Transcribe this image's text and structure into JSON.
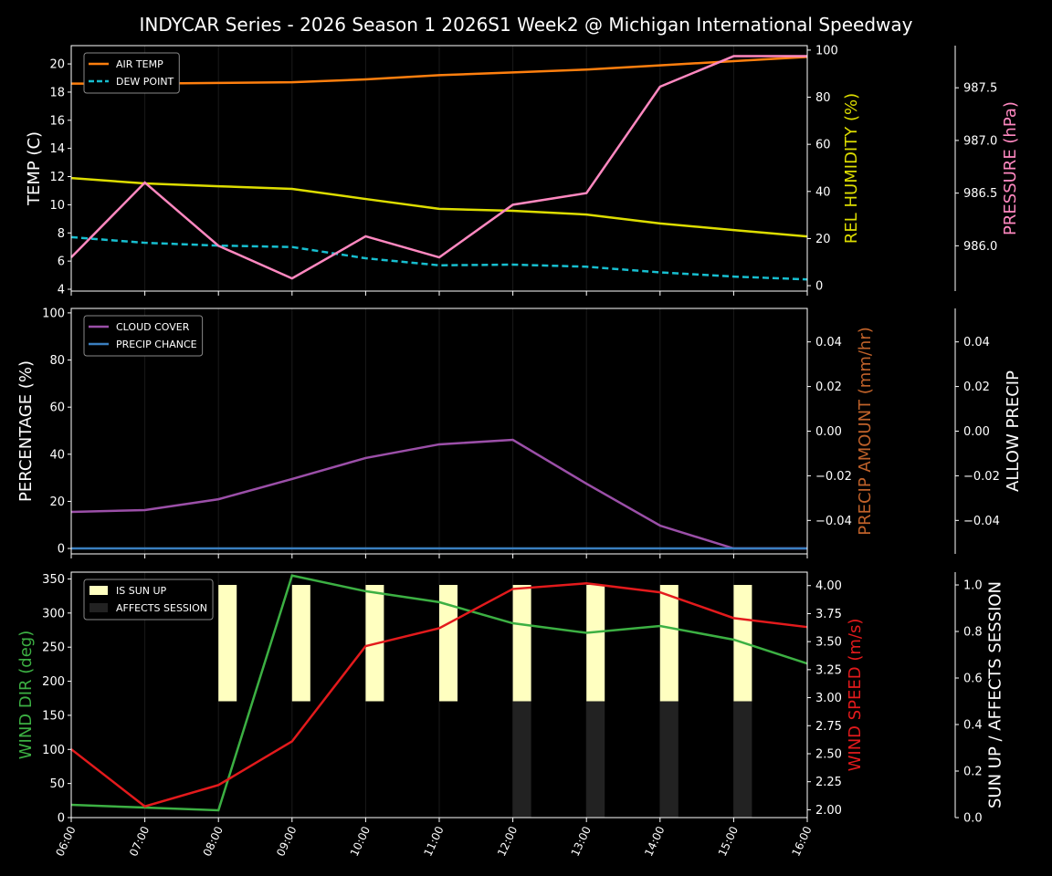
{
  "title": "INDYCAR Series - 2026 Season 1 2026S1 Week2 @ Michigan International Speedway",
  "chart_data": [
    {
      "type": "line",
      "x": [
        "06:00",
        "07:00",
        "08:00",
        "09:00",
        "10:00",
        "11:00",
        "12:00",
        "13:00",
        "14:00",
        "15:00",
        "16:00"
      ],
      "grid": "vertical",
      "legend": "top-left",
      "axes": [
        {
          "id": "temp",
          "side": "left",
          "label": "TEMP (C)",
          "label_color": "#ffffff",
          "ylim": [
            3.87,
            21.3
          ],
          "ticks": [
            4,
            6,
            8,
            10,
            12,
            14,
            16,
            18,
            20
          ],
          "tick_format": "0"
        },
        {
          "id": "hum",
          "side": "right",
          "label": "REL HUMIDITY (%)",
          "label_color": "#dddd00",
          "ylim": [
            -2.3,
            101.9
          ],
          "ticks": [
            0,
            20,
            40,
            60,
            80,
            100
          ],
          "tick_format": "0"
        },
        {
          "id": "pres",
          "side": "far-right",
          "label": "PRESSURE (hPa)",
          "label_color": "#ff88c0",
          "ylim": [
            985.57,
            987.9
          ],
          "ticks": [
            986.0,
            986.5,
            987.0,
            987.5
          ],
          "tick_format": "1"
        }
      ],
      "series": [
        {
          "name": "AIR TEMP",
          "axis": "temp",
          "color": "#ff7f0e",
          "dash": false,
          "legend": true,
          "values": [
            18.6,
            18.6,
            18.65,
            18.7,
            18.9,
            19.2,
            19.4,
            19.6,
            19.9,
            20.2,
            20.5
          ]
        },
        {
          "name": "DEW POINT",
          "axis": "temp",
          "color": "#17becf",
          "dash": true,
          "legend": true,
          "values": [
            7.7,
            7.3,
            7.1,
            7.0,
            6.2,
            5.7,
            5.75,
            5.6,
            5.2,
            4.9,
            4.7
          ]
        },
        {
          "axis": "hum",
          "color": "#dddd00",
          "dash": false,
          "legend": false,
          "values": [
            45.7,
            43.4,
            42.2,
            41.1,
            36.8,
            32.6,
            31.8,
            30.2,
            26.4,
            23.6,
            20.9
          ]
        },
        {
          "axis": "pres",
          "color": "#ff88c0",
          "dash": false,
          "legend": false,
          "values": [
            985.89,
            986.6,
            986.0,
            985.69,
            986.09,
            985.89,
            986.39,
            986.5,
            987.51,
            987.8,
            987.8
          ]
        }
      ]
    },
    {
      "type": "line",
      "x": [
        "06:00",
        "07:00",
        "08:00",
        "09:00",
        "10:00",
        "11:00",
        "12:00",
        "13:00",
        "14:00",
        "15:00",
        "16:00"
      ],
      "grid": "vertical",
      "legend": "top-left",
      "axes": [
        {
          "id": "pct",
          "side": "left",
          "label": "PERCENTAGE (%)",
          "label_color": "#ffffff",
          "ylim": [
            -2.3,
            101.9
          ],
          "ticks": [
            0,
            20,
            40,
            60,
            80,
            100
          ],
          "tick_format": "0"
        },
        {
          "id": "pamt",
          "side": "right",
          "label": "PRECIP AMOUNT (mm/hr)",
          "label_color": "#c0622a",
          "ylim": [
            -0.055,
            0.055
          ],
          "ticks": [
            -0.04,
            -0.02,
            0,
            0.02,
            0.04
          ],
          "tick_format": "2"
        },
        {
          "id": "allow",
          "side": "far-right",
          "label": "ALLOW PRECIP",
          "label_color": "#ffffff",
          "ylim": [
            -0.055,
            0.055
          ],
          "ticks": [
            -0.04,
            -0.02,
            0,
            0.02,
            0.04
          ],
          "tick_format": "2"
        }
      ],
      "series": [
        {
          "name": "CLOUD COVER",
          "axis": "pct",
          "color": "#9b4fa8",
          "dash": false,
          "legend": true,
          "values": [
            15.5,
            16.3,
            20.9,
            29.5,
            38.4,
            44.2,
            46.1,
            27.5,
            9.7,
            0,
            0
          ]
        },
        {
          "name": "PRECIP CHANCE",
          "axis": "pct",
          "color": "#3a7fc0",
          "dash": false,
          "legend": true,
          "values": [
            0,
            0,
            0,
            0,
            0,
            0,
            0,
            0,
            0,
            0,
            0
          ]
        }
      ]
    },
    {
      "type": "line",
      "x": [
        "06:00",
        "07:00",
        "08:00",
        "09:00",
        "10:00",
        "11:00",
        "12:00",
        "13:00",
        "14:00",
        "15:00",
        "16:00"
      ],
      "grid": "vertical",
      "legend": "top-left",
      "axes": [
        {
          "id": "wdir",
          "side": "left",
          "label": "WIND DIR (deg)",
          "label_color": "#3cb043",
          "ylim": [
            0,
            360
          ],
          "ticks": [
            0,
            50,
            100,
            150,
            200,
            250,
            300,
            350
          ],
          "tick_format": "0"
        },
        {
          "id": "wspd",
          "side": "right",
          "label": "WIND SPEED (m/s)",
          "label_color": "#e31a1c",
          "ylim": [
            1.93,
            4.12
          ],
          "ticks": [
            2.0,
            2.25,
            2.5,
            2.75,
            3.0,
            3.25,
            3.5,
            3.75,
            4.0
          ],
          "tick_format": "2"
        },
        {
          "id": "sun",
          "side": "far-right",
          "label": "SUN UP / AFFECTS SESSION",
          "label_color": "#ffffff",
          "ylim": [
            0,
            1.055
          ],
          "ticks": [
            0,
            0.2,
            0.4,
            0.6,
            0.8,
            1.0
          ],
          "tick_format": "1"
        }
      ],
      "bars": [
        {
          "name": "IS SUN UP",
          "axis": "sun",
          "color": "#ffffc0",
          "base": 0.5,
          "values": [
            0,
            0,
            0.5,
            0.5,
            0.5,
            0.5,
            0.5,
            0.5,
            0.5,
            0.5,
            0
          ]
        },
        {
          "name": "AFFECTS SESSION",
          "axis": "sun",
          "color": "#222222",
          "base": 0,
          "values": [
            0,
            0,
            0,
            0,
            0,
            0,
            0.5,
            0.5,
            0.5,
            0.5,
            0
          ]
        }
      ],
      "series": [
        {
          "axis": "wdir",
          "color": "#3cb043",
          "dash": false,
          "legend": false,
          "values": [
            18.8,
            14.7,
            10.7,
            355,
            332,
            316,
            285,
            271,
            281,
            261,
            226
          ]
        },
        {
          "axis": "wspd",
          "color": "#e31a1c",
          "dash": false,
          "legend": false,
          "values": [
            2.54,
            2.03,
            2.22,
            2.61,
            3.46,
            3.62,
            3.97,
            4.02,
            3.94,
            3.71,
            3.63
          ]
        }
      ]
    }
  ]
}
